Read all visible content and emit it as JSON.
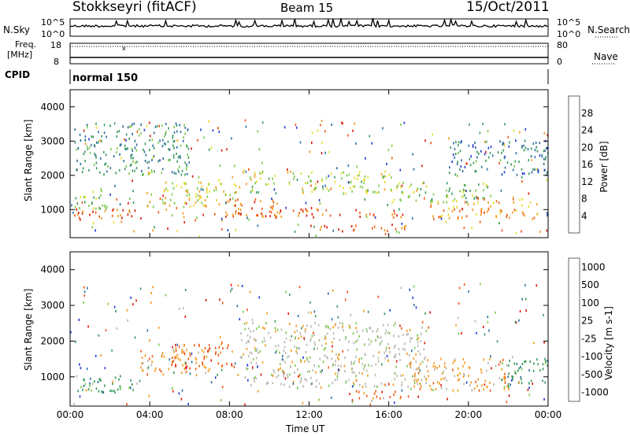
{
  "header": {
    "radar": "Stokkseyri (fitACF)",
    "beam": "Beam 15",
    "date": "15/Oct/2011"
  },
  "nsky_panel": {
    "left_label": "N.Sky",
    "right_label": "N.Search",
    "left_ticks": [
      "10^5",
      "10^0"
    ],
    "right_ticks": [
      "10^5",
      "10^0"
    ],
    "legend_line_style": "dotted"
  },
  "freq_panel": {
    "left_label_line1": "Freq.",
    "left_label_line2": "[MHz]",
    "right_label": "Nave",
    "left_ticks": [
      "18",
      "8"
    ],
    "right_ticks": [
      "80",
      "0"
    ],
    "legend_line_style": "dotted"
  },
  "cpid_panel": {
    "label": "CPID",
    "mode": "normal 150"
  },
  "x_axis": {
    "label": "Time UT",
    "ticks": [
      "00:00",
      "04:00",
      "08:00",
      "12:00",
      "16:00",
      "20:00",
      "00:00"
    ]
  },
  "chart_data": [
    {
      "type": "heatmap",
      "parameter": "Power",
      "ylabel": "Slant Range [km]",
      "xlabel": "Time UT",
      "x_range_hours": [
        0,
        24
      ],
      "ylim": [
        180,
        4500
      ],
      "yticks": [
        1000,
        2000,
        3000,
        4000
      ],
      "colorbar": {
        "label": "Power [dB]",
        "min": 0,
        "max": 32,
        "ticks": [
          "4",
          "8",
          "12",
          "16",
          "20",
          "24",
          "28"
        ],
        "tick_values": [
          4,
          8,
          12,
          16,
          20,
          24,
          28
        ],
        "colors": [
          "#1f3bd6",
          "#2e6f9e",
          "#3a9a5c",
          "#7ec84a",
          "#e7dc2a",
          "#f49b1e",
          "#ee5a14",
          "#d91b0f"
        ]
      },
      "bands": [
        {
          "t0": 0.2,
          "t1": 3.8,
          "r0": 650,
          "r1": 1000,
          "value": 26
        },
        {
          "t0": 0.2,
          "t1": 2.0,
          "r0": 1000,
          "r1": 1600,
          "value": 14
        },
        {
          "t0": 3.8,
          "t1": 8.5,
          "r0": 1050,
          "r1": 1800,
          "value": 18
        },
        {
          "t0": 7.0,
          "t1": 10.5,
          "r0": 780,
          "r1": 1300,
          "value": 25
        },
        {
          "t0": 9.0,
          "t1": 16.5,
          "r0": 1450,
          "r1": 2100,
          "value": 16
        },
        {
          "t0": 9.5,
          "t1": 17.0,
          "r0": 750,
          "r1": 1000,
          "value": 27
        },
        {
          "t0": 12.0,
          "t1": 17.0,
          "r0": 350,
          "r1": 550,
          "value": 26
        },
        {
          "t0": 16.5,
          "t1": 21.0,
          "r0": 1200,
          "r1": 1800,
          "value": 13
        },
        {
          "t0": 18.0,
          "t1": 23.5,
          "r0": 700,
          "r1": 1300,
          "value": 22
        },
        {
          "t0": 19.0,
          "t1": 24.0,
          "r0": 2000,
          "r1": 3000,
          "value": 7
        },
        {
          "t0": 0.2,
          "t1": 6.0,
          "r0": 2000,
          "r1": 3500,
          "value": 9
        }
      ]
    },
    {
      "type": "heatmap",
      "parameter": "Velocity",
      "ylabel": "Slant Range [km]",
      "xlabel": "Time UT",
      "x_range_hours": [
        0,
        24
      ],
      "ylim": [
        180,
        4500
      ],
      "yticks": [
        1000,
        2000,
        3000,
        4000
      ],
      "colorbar": {
        "label": "Velocity [m s-1]",
        "ticks": [
          "1000",
          "500",
          "100",
          "25",
          "-25",
          "-100",
          "-500",
          "-1000"
        ],
        "colors": [
          "#1f3bd6",
          "#2e6f9e",
          "#3a9a5c",
          "#7ec84a",
          "#b8b8b0",
          "#f49b1e",
          "#ee5a14",
          "#d91b0f"
        ]
      },
      "bands": [
        {
          "t0": 0.2,
          "t1": 3.5,
          "r0": 550,
          "r1": 1000,
          "value": "100"
        },
        {
          "t0": 3.5,
          "t1": 7.0,
          "r0": 1050,
          "r1": 1800,
          "value": "-100"
        },
        {
          "t0": 5.0,
          "t1": 8.5,
          "r0": 1200,
          "r1": 1900,
          "value": "-500"
        },
        {
          "t0": 8.5,
          "t1": 18.0,
          "r0": 700,
          "r1": 2500,
          "value": "-25"
        },
        {
          "t0": 14.0,
          "t1": 17.0,
          "r0": 350,
          "r1": 600,
          "value": "-500"
        },
        {
          "t0": 17.0,
          "t1": 22.0,
          "r0": 600,
          "r1": 1500,
          "value": "-100"
        },
        {
          "t0": 21.5,
          "t1": 24.0,
          "r0": 700,
          "r1": 1500,
          "value": "100"
        }
      ]
    }
  ]
}
